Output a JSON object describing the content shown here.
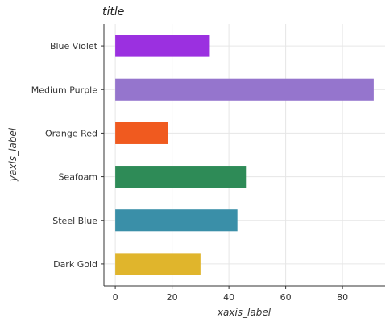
{
  "chart_data": {
    "type": "bar",
    "orientation": "horizontal",
    "title": "title",
    "xlabel": "xaxis_label",
    "ylabel": "yaxis_label",
    "categories": [
      "Dark Gold",
      "Steel Blue",
      "Seafoam",
      "Orange Red",
      "Medium Purple",
      "Blue Violet"
    ],
    "values": [
      30,
      43,
      46,
      18.5,
      91,
      33
    ],
    "colors": [
      "#e0b52c",
      "#3a8fa8",
      "#2e8b57",
      "#f05a1f",
      "#9575cd",
      "#9b30e0"
    ],
    "xlim": [
      -4,
      95
    ],
    "xticks": [
      0,
      20,
      40,
      60,
      80
    ],
    "grid": true
  }
}
